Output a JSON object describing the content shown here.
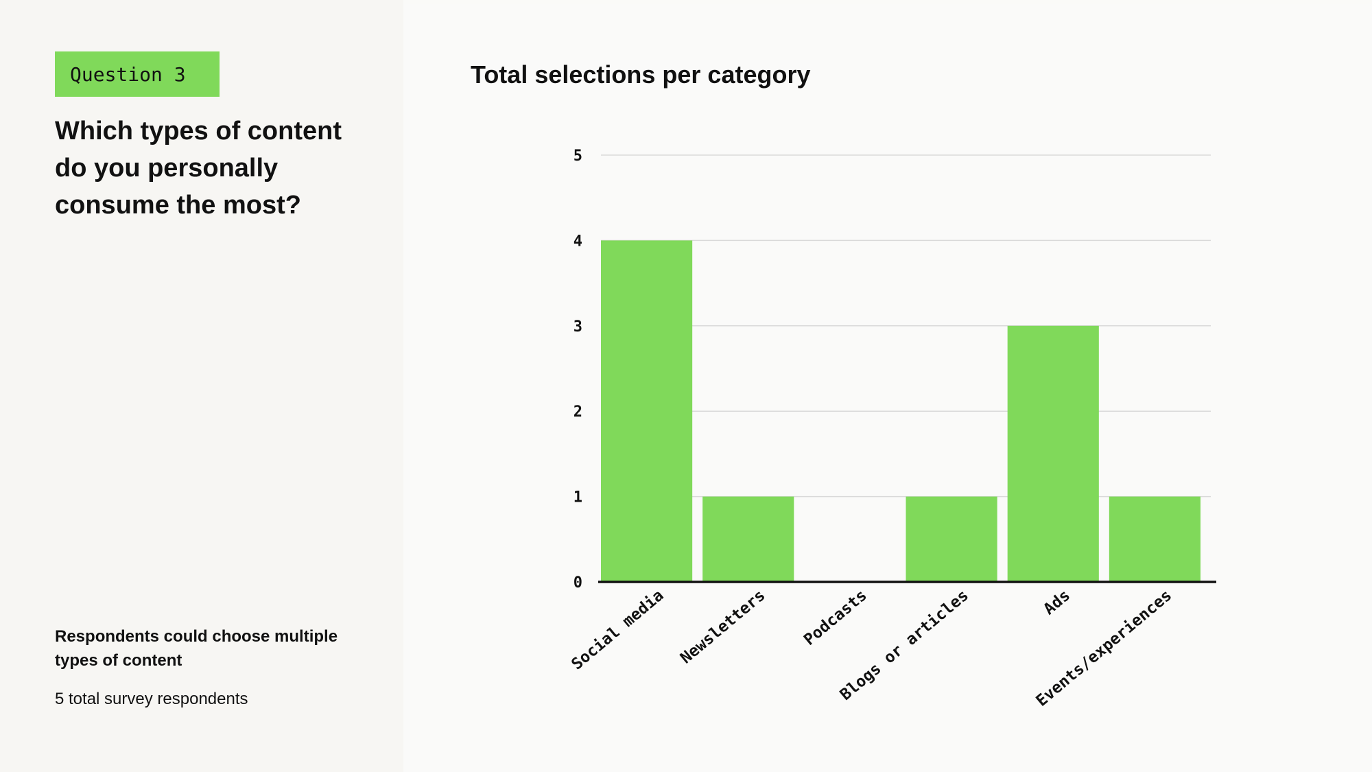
{
  "header": {
    "tag": "Question 3",
    "question": "Which types of content do you personally consume the most?"
  },
  "footer": {
    "note": "Respondents could choose multiple types of content",
    "respondents": "5 total survey respondents"
  },
  "colors": {
    "bar": "#80d95a",
    "grid": "#d9d9d9",
    "axis": "#111111"
  },
  "chart_data": {
    "type": "bar",
    "title": "Total selections per category",
    "xlabel": "",
    "ylabel": "",
    "categories": [
      "Social media",
      "Newsletters",
      "Podcasts",
      "Blogs or articles",
      "Ads",
      "Events/experiences"
    ],
    "values": [
      4,
      1,
      0,
      1,
      3,
      1
    ],
    "ylim": [
      0,
      5
    ],
    "yticks": [
      0,
      1,
      2,
      3,
      4,
      5
    ],
    "grid": true,
    "legend": "none"
  }
}
